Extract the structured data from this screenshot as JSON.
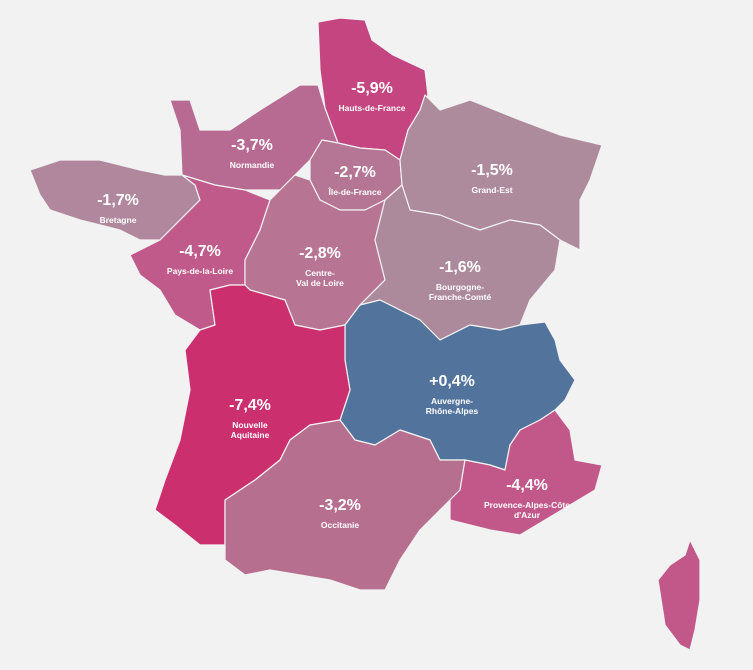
{
  "regions": [
    {
      "name": [
        "Hauts-de-France"
      ],
      "value": -5.9,
      "value_label": "-5,9%",
      "color": "#c4457f"
    },
    {
      "name": [
        "Normandie"
      ],
      "value": -3.7,
      "value_label": "-3,7%",
      "color": "#b86b92"
    },
    {
      "name": [
        "Île-de-France"
      ],
      "value": -2.7,
      "value_label": "-2,7%",
      "color": "#b57594"
    },
    {
      "name": [
        "Grand-Est"
      ],
      "value": -1.5,
      "value_label": "-1,5%",
      "color": "#ae8a9d"
    },
    {
      "name": [
        "Bretagne"
      ],
      "value": -1.7,
      "value_label": "-1,7%",
      "color": "#b0879c"
    },
    {
      "name": [
        "Pays-de-la-Loire"
      ],
      "value": -4.7,
      "value_label": "-4,7%",
      "color": "#bf5a8a"
    },
    {
      "name": [
        "Centre-",
        "Val de Loire"
      ],
      "value": -2.8,
      "value_label": "-2,8%",
      "color": "#b87493"
    },
    {
      "name": [
        "Bourgogne-",
        "Franche-Comté"
      ],
      "value": -1.6,
      "value_label": "-1,6%",
      "color": "#ad899c"
    },
    {
      "name": [
        "Auvergne-",
        "Rhône-Alpes"
      ],
      "value": 0.4,
      "value_label": "+0,4%",
      "color": "#52739c"
    },
    {
      "name": [
        "Nouvelle",
        "Aquitaine"
      ],
      "value": -7.4,
      "value_label": "-7,4%",
      "color": "#cc2f6e"
    },
    {
      "name": [
        "Occitanie"
      ],
      "value": -3.2,
      "value_label": "-3,2%",
      "color": "#b76f90"
    },
    {
      "name": [
        "Provence-Alpes-Côte",
        "d'Azur"
      ],
      "value": -4.4,
      "value_label": "-4,4%",
      "color": "#c2588a"
    }
  ]
}
